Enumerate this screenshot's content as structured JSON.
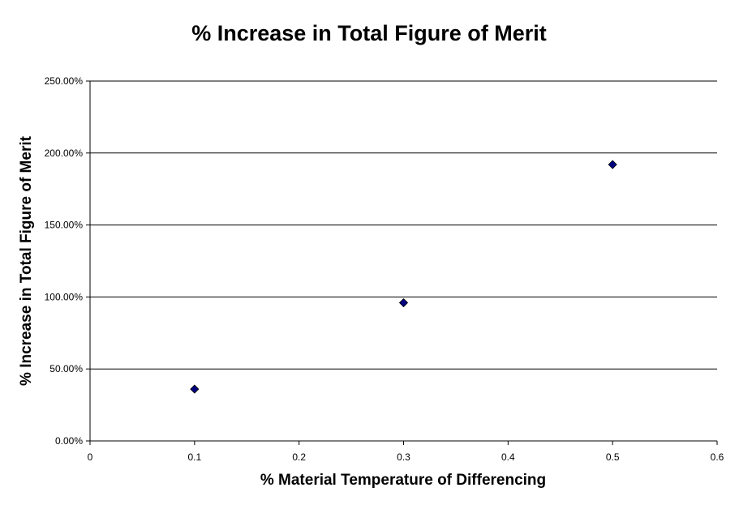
{
  "chart_data": {
    "type": "scatter",
    "title": "% Increase in Total Figure of Merit",
    "xlabel": "% Material Temperature of Differencing",
    "ylabel": "% Increase in Total Figure of Merit",
    "xlim": [
      0,
      0.6
    ],
    "ylim": [
      0,
      2.5
    ],
    "x_ticks": [
      0,
      0.1,
      0.2,
      0.3,
      0.4,
      0.5,
      0.6
    ],
    "x_tick_labels": [
      "0",
      "0.1",
      "0.2",
      "0.3",
      "0.4",
      "0.5",
      "0.6"
    ],
    "y_ticks": [
      0,
      0.5,
      1.0,
      1.5,
      2.0,
      2.5
    ],
    "y_tick_labels": [
      "0.00%",
      "50.00%",
      "100.00%",
      "150.00%",
      "200.00%",
      "250.00%"
    ],
    "grid": "horizontal",
    "legend": "none",
    "marker": "diamond",
    "marker_color": "#000080",
    "series": [
      {
        "x": [
          0.1,
          0.3,
          0.5
        ],
        "y": [
          0.36,
          0.96,
          1.92
        ]
      }
    ]
  }
}
